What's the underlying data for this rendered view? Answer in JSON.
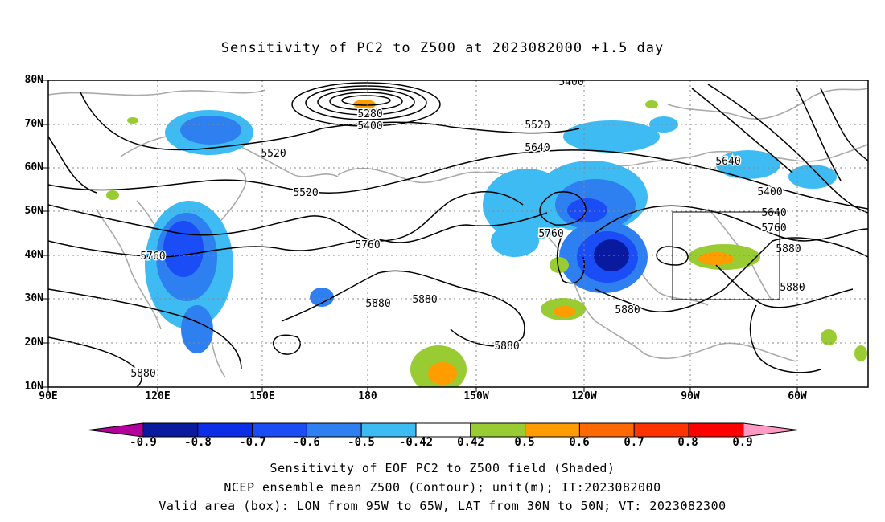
{
  "title": "Sensitivity of PC2 to Z500 at 2023082000 +1.5 day",
  "lat_labels": [
    "80N",
    "70N",
    "60N",
    "50N",
    "40N",
    "30N",
    "20N",
    "10N"
  ],
  "lon_labels": [
    "90E",
    "120E",
    "150E",
    "180",
    "150W",
    "120W",
    "90W",
    "60W"
  ],
  "contour_labels": [
    "5400",
    "5280",
    "5400",
    "5520",
    "5520",
    "5640",
    "5640",
    "5400",
    "5520",
    "5640",
    "5760",
    "5760",
    "5760",
    "5760",
    "5880",
    "5880",
    "5880",
    "5880",
    "5880",
    "5880",
    "5880"
  ],
  "colorbar": {
    "labels": [
      "-0.9",
      "-0.8",
      "-0.7",
      "-0.6",
      "-0.5",
      "-0.42",
      "0.42",
      "0.5",
      "0.6",
      "0.7",
      "0.8",
      "0.9"
    ],
    "colors": [
      "#b3009b",
      "#0a1a9e",
      "#0b2ee6",
      "#1a4df5",
      "#2e80f0",
      "#3dbbf2",
      "#ffffff",
      "#99cc33",
      "#ff9c00",
      "#ff6a00",
      "#ff3300",
      "#ff0000",
      "#ff9ac4"
    ]
  },
  "captions": [
    "Sensitivity of EOF PC2 to Z500 field (Shaded)",
    "NCEP ensemble mean Z500 (Contour); unit(m); IT:2023082000",
    "Valid area (box): LON from 95W to 65W, LAT from 30N to 50N; VT: 2023082300"
  ],
  "valid_box": {
    "lon_min": -95,
    "lon_max": -65,
    "lat_min": 30,
    "lat_max": 50
  }
}
